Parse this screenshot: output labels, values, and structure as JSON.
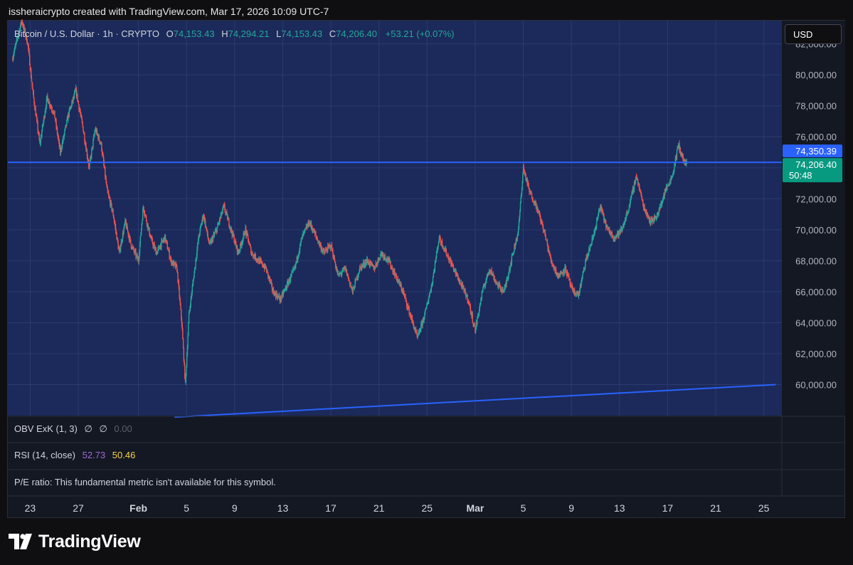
{
  "caption": "issheraicrypto created with TradingView.com, Mar 17, 2026 10:09 UTC-7",
  "legend": {
    "symbol": "Bitcoin / U.S. Dollar · 1h · CRYPTO",
    "o_label": "O",
    "o_value": "74,153.43",
    "h_label": "H",
    "h_value": "74,294.21",
    "l_label": "L",
    "l_value": "74,153.43",
    "c_label": "C",
    "c_value": "74,206.40",
    "change": "+53.21 (+0.07%)"
  },
  "currency": "USD",
  "price_labels": {
    "line_level": "74,350.39",
    "last_price": "74,206.40",
    "countdown": "50:48"
  },
  "indicators": {
    "obv": {
      "name": "OBV ExK (1, 3)",
      "v1": "∅",
      "v2": "∅",
      "v3": "0.00"
    },
    "rsi": {
      "name": "RSI (14, close)",
      "v1": "52.73",
      "v2": "50.46"
    },
    "pe": {
      "text": "P/E ratio: This fundamental metric isn't available for this symbol."
    }
  },
  "colors": {
    "up": "#26a69a",
    "down": "#ef5350",
    "line": "#2962ff",
    "bg": "#1b2a5a"
  },
  "footer": {
    "brand": "TradingView",
    "logo": "tradingview-logo-icon"
  },
  "chart_data": {
    "type": "candlestick",
    "ylim": [
      58000,
      83500
    ],
    "y_ticks": [
      "82,000.00",
      "80,000.00",
      "78,000.00",
      "76,000.00",
      "74,000.00",
      "72,000.00",
      "70,000.00",
      "68,000.00",
      "66,000.00",
      "64,000.00",
      "62,000.00",
      "60,000.00"
    ],
    "y_tick_values": [
      82000,
      80000,
      78000,
      76000,
      74000,
      72000,
      70000,
      68000,
      66000,
      64000,
      62000,
      60000
    ],
    "x_ticks": [
      "23",
      "27",
      "Feb",
      "5",
      "9",
      "13",
      "17",
      "21",
      "25",
      "Mar",
      "5",
      "9",
      "13",
      "17",
      "21",
      "25"
    ],
    "x_tick_days": [
      -9,
      -5,
      0,
      4,
      8,
      12,
      16,
      20,
      24,
      28,
      32,
      36,
      40,
      44,
      48,
      52
    ],
    "horizontal_line": 74350.39,
    "trendline": [
      [
        3,
        57900
      ],
      [
        53,
        60000
      ]
    ],
    "path": [
      [
        -10.5,
        81000
      ],
      [
        -9.7,
        83500
      ],
      [
        -9.2,
        82000
      ],
      [
        -8.8,
        79000
      ],
      [
        -8.2,
        75500
      ],
      [
        -7.6,
        78500
      ],
      [
        -7,
        77500
      ],
      [
        -6.5,
        75000
      ],
      [
        -5.8,
        77500
      ],
      [
        -5.2,
        79000
      ],
      [
        -4.6,
        76500
      ],
      [
        -4.1,
        74000
      ],
      [
        -3.6,
        76500
      ],
      [
        -3.1,
        75500
      ],
      [
        -2.6,
        72500
      ],
      [
        -2.1,
        71000
      ],
      [
        -1.6,
        68500
      ],
      [
        -1.1,
        70500
      ],
      [
        -0.6,
        69000
      ],
      [
        0,
        68000
      ],
      [
        0.4,
        71500
      ],
      [
        1,
        69500
      ],
      [
        1.5,
        68500
      ],
      [
        2.2,
        69500
      ],
      [
        2.7,
        68000
      ],
      [
        3.2,
        67500
      ],
      [
        3.6,
        64000
      ],
      [
        3.9,
        60000
      ],
      [
        4.2,
        64500
      ],
      [
        4.6,
        67000
      ],
      [
        5,
        69500
      ],
      [
        5.4,
        71000
      ],
      [
        5.9,
        69000
      ],
      [
        6.5,
        70000
      ],
      [
        7.1,
        71500
      ],
      [
        7.7,
        70000
      ],
      [
        8.3,
        68500
      ],
      [
        8.9,
        70000
      ],
      [
        9.4,
        68500
      ],
      [
        10,
        68000
      ],
      [
        10.6,
        67500
      ],
      [
        11.2,
        66000
      ],
      [
        11.8,
        65500
      ],
      [
        12.4,
        66500
      ],
      [
        13,
        67500
      ],
      [
        13.6,
        69500
      ],
      [
        14.2,
        70500
      ],
      [
        14.8,
        69500
      ],
      [
        15.4,
        68500
      ],
      [
        16,
        69000
      ],
      [
        16.6,
        67000
      ],
      [
        17.2,
        67500
      ],
      [
        17.8,
        66000
      ],
      [
        18.4,
        67500
      ],
      [
        19,
        68000
      ],
      [
        19.6,
        67500
      ],
      [
        20.2,
        68500
      ],
      [
        20.8,
        68000
      ],
      [
        21.4,
        67000
      ],
      [
        22,
        66000
      ],
      [
        22.6,
        64500
      ],
      [
        23.2,
        63000
      ],
      [
        23.8,
        64500
      ],
      [
        24.4,
        66500
      ],
      [
        25,
        69500
      ],
      [
        25.6,
        68500
      ],
      [
        26.2,
        67500
      ],
      [
        26.8,
        66500
      ],
      [
        27.4,
        65500
      ],
      [
        28,
        63500
      ],
      [
        28.6,
        66000
      ],
      [
        29.2,
        67500
      ],
      [
        29.8,
        66500
      ],
      [
        30.4,
        66000
      ],
      [
        31,
        68000
      ],
      [
        31.6,
        70000
      ],
      [
        32,
        74000
      ],
      [
        32.5,
        72500
      ],
      [
        33.1,
        71500
      ],
      [
        33.7,
        70000
      ],
      [
        34.3,
        68000
      ],
      [
        34.9,
        67000
      ],
      [
        35.5,
        67500
      ],
      [
        36.1,
        66000
      ],
      [
        36.6,
        65800
      ],
      [
        37.2,
        68000
      ],
      [
        37.8,
        69500
      ],
      [
        38.4,
        71500
      ],
      [
        39,
        70000
      ],
      [
        39.6,
        69500
      ],
      [
        40.2,
        70000
      ],
      [
        40.8,
        71500
      ],
      [
        41.4,
        73500
      ],
      [
        42,
        71500
      ],
      [
        42.6,
        70500
      ],
      [
        43.2,
        71000
      ],
      [
        43.8,
        72500
      ],
      [
        44.4,
        73500
      ],
      [
        44.9,
        75500
      ],
      [
        45.3,
        74500
      ],
      [
        45.6,
        74206
      ]
    ]
  }
}
